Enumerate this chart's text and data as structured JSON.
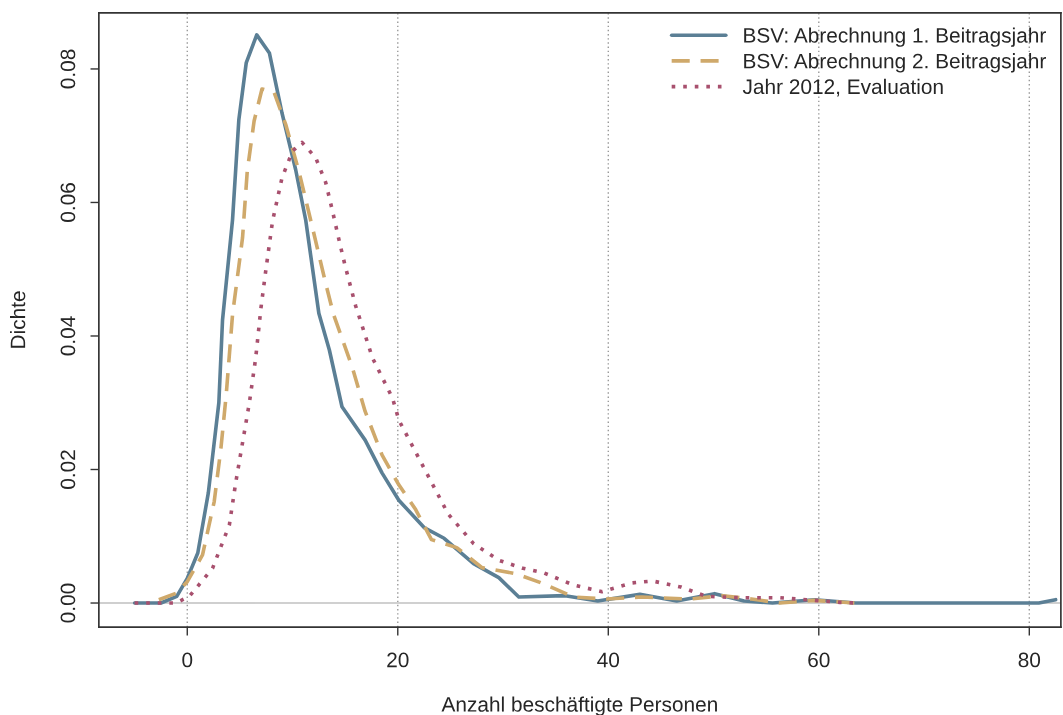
{
  "chart_data": {
    "type": "line",
    "xlabel": "Anzahl beschäftigte Personen",
    "ylabel": "Dichte",
    "xlim": [
      -8.4,
      83
    ],
    "ylim": [
      -0.0036,
      0.0884
    ],
    "xticks": [
      0,
      20,
      40,
      60,
      80
    ],
    "yticks": [
      {
        "value": 0,
        "label": "0.00"
      },
      {
        "value": 0.02,
        "label": "0.02"
      },
      {
        "value": 0.04,
        "label": "0.04"
      },
      {
        "value": 0.06,
        "label": "0.06"
      },
      {
        "value": 0.08,
        "label": "0.08"
      }
    ],
    "grid": "x",
    "legend": "top right",
    "marker": "none",
    "ref_lines": [
      {
        "axis": "y",
        "value": 0,
        "color": "#c0c0c0"
      }
    ],
    "series": [
      {
        "name": "BSV: Abrechnung 1. Beitragsjahr",
        "color": "#5b7f95",
        "line_style": "solid",
        "x": [
          -5,
          -2.5,
          -1,
          0,
          1,
          2,
          3,
          3.35,
          4.3,
          4.9,
          5.6,
          6.6,
          7.8,
          9.0,
          10.3,
          11.25,
          12.5,
          13.5,
          14.7,
          16.9,
          18.5,
          20.1,
          22.5,
          24.4,
          27.2,
          29.6,
          31.5,
          35.9,
          39,
          43,
          46.5,
          50.1,
          52.9,
          55.6,
          59.6,
          63.5,
          70,
          80.9,
          82.5
        ],
        "values": [
          0,
          0,
          0.001,
          0.0037,
          0.0075,
          0.0165,
          0.03,
          0.0424,
          0.0574,
          0.0724,
          0.0809,
          0.0851,
          0.0824,
          0.0734,
          0.0649,
          0.0574,
          0.0434,
          0.0379,
          0.0294,
          0.0244,
          0.0195,
          0.0154,
          0.0113,
          0.0097,
          0.0059,
          0.0038,
          0.0009,
          0.0011,
          0.0003,
          0.0013,
          0.0003,
          0.0014,
          0.0003,
          0,
          0.0005,
          0,
          0,
          0,
          0.0005
        ]
      },
      {
        "name": "BSV: Abrechnung 2. Beitragsjahr",
        "color": "#cfa96b",
        "line_style": "dashed",
        "x": [
          -2.7,
          -1,
          0,
          1.45,
          2.56,
          3.2,
          3.7,
          4.3,
          5.25,
          5.7,
          6.35,
          7.1,
          8.25,
          9.35,
          10.6,
          11.9,
          13.1,
          13.9,
          15.7,
          16.9,
          18.5,
          20.1,
          21.7,
          23.2,
          25.6,
          28,
          31.2,
          33.5,
          36.7,
          39.8,
          43.2,
          47.7,
          50.9,
          53.6,
          56.3,
          59.5,
          63.5
        ],
        "values": [
          0.0005,
          0.0015,
          0.0032,
          0.0072,
          0.0152,
          0.0232,
          0.0312,
          0.0432,
          0.0547,
          0.0647,
          0.0722,
          0.077,
          0.0765,
          0.0717,
          0.0647,
          0.0562,
          0.0482,
          0.0432,
          0.0352,
          0.0287,
          0.0222,
          0.0177,
          0.014,
          0.0095,
          0.0083,
          0.0053,
          0.0044,
          0.0031,
          0.0009,
          0.0006,
          0.0009,
          0.0006,
          0.0011,
          0.0006,
          0,
          0.0004,
          0
        ]
      },
      {
        "name": "Jahr 2012, Evaluation",
        "color": "#a8506e",
        "line_style": "dotted",
        "x": [
          -5,
          -1.1,
          0.2,
          2.4,
          4,
          4.6,
          5.25,
          5.9,
          6.5,
          7,
          7.45,
          8.1,
          9.0,
          10,
          10.9,
          12.2,
          13.15,
          13.8,
          14.4,
          15.0,
          16,
          17.6,
          19.5,
          20.1,
          22.5,
          24.8,
          27.2,
          29.6,
          31.9,
          33.9,
          36.7,
          39.4,
          42.2,
          44.2,
          46.9,
          49.3,
          52.5,
          56.3,
          58.8,
          62,
          63.5
        ],
        "values": [
          0,
          0,
          0.001,
          0.0052,
          0.0117,
          0.018,
          0.024,
          0.03,
          0.0367,
          0.0442,
          0.0497,
          0.0572,
          0.0637,
          0.0677,
          0.069,
          0.0667,
          0.063,
          0.0587,
          0.0545,
          0.0505,
          0.0445,
          0.0367,
          0.0307,
          0.0274,
          0.0202,
          0.0133,
          0.0089,
          0.0064,
          0.0052,
          0.0045,
          0.0027,
          0.0017,
          0.003,
          0.0033,
          0.0024,
          0.001,
          0.0008,
          0.0008,
          0.0005,
          0.0001,
          0
        ]
      }
    ]
  }
}
